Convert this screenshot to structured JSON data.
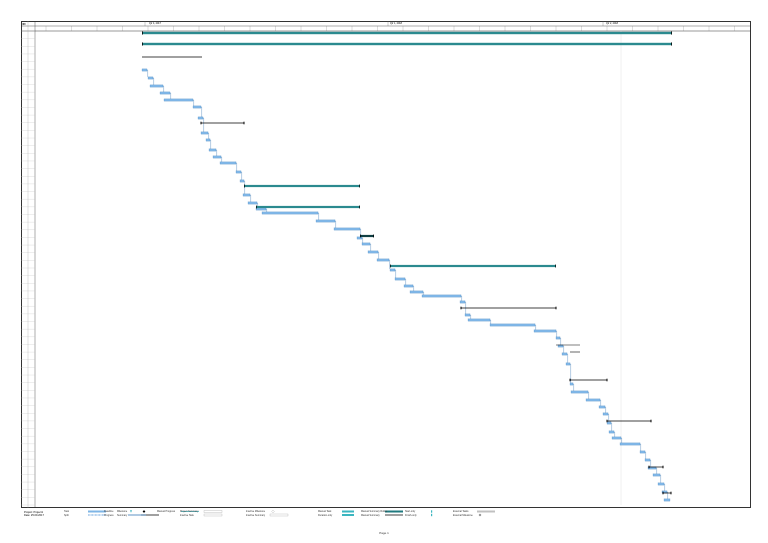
{
  "header": {
    "id_label": "ID",
    "quarters": [
      {
        "label": "Qtr 4, 2017"
      },
      {
        "label": "Qtr 1, 2018"
      },
      {
        "label": "Qtr 2, 2018"
      }
    ]
  },
  "project_info": {
    "line1": "Project: Project1",
    "line2": "Date: 25.09.2017"
  },
  "legend": {
    "items": [
      {
        "label": "Task",
        "swatch": "bar",
        "color": "#7eb5e6"
      },
      {
        "label": "Split",
        "swatch": "dots",
        "color": "#4a8fd4"
      },
      {
        "label": "Milestone",
        "swatch": "diamond",
        "color": "#000000"
      },
      {
        "label": "Summary",
        "swatch": "summary",
        "color": "#000000"
      },
      {
        "label": "Project Summary",
        "swatch": "outline",
        "color": "#999999"
      },
      {
        "label": "Inactive Task",
        "swatch": "outline",
        "color": "#999999"
      },
      {
        "label": "Inactive Milestone",
        "swatch": "diamond-outline",
        "color": "#999999"
      },
      {
        "label": "Inactive Summary",
        "swatch": "outline",
        "color": "#999999"
      },
      {
        "label": "Manual Task",
        "swatch": "teal",
        "color": "#3cb6c0"
      },
      {
        "label": "Duration-only",
        "swatch": "teal",
        "color": "#3cb6c0"
      },
      {
        "label": "Manual Summary Rollup",
        "swatch": "teal-dark",
        "color": "#1f7a7f"
      },
      {
        "label": "Manual Summary",
        "swatch": "summary",
        "color": "#000000"
      },
      {
        "label": "Start-only",
        "swatch": "bracket",
        "color": "#3cb6c0"
      },
      {
        "label": "Finish-only",
        "swatch": "bracket",
        "color": "#3cb6c0"
      },
      {
        "label": "External Tasks",
        "swatch": "grey",
        "color": "#c0c0c0"
      },
      {
        "label": "External Milestone",
        "swatch": "diamond",
        "color": "#888888"
      },
      {
        "label": "Deadline",
        "swatch": "arrow",
        "color": "#3cb6c0"
      },
      {
        "label": "Progress",
        "swatch": "line",
        "color": "#2a6fb0"
      },
      {
        "label": "Manual Progress",
        "swatch": "line",
        "color": "#3cb6c0"
      }
    ]
  },
  "footer": {
    "page_label": "Page 1"
  },
  "colors": {
    "task": "#7eb5e6",
    "task_dark": "#2a6fb0",
    "summary_teal": "#2b8a8f",
    "summary_dark": "#0f3f44",
    "grid": "#d9d9d9",
    "deadline_line": "#e0e0e0"
  }
}
